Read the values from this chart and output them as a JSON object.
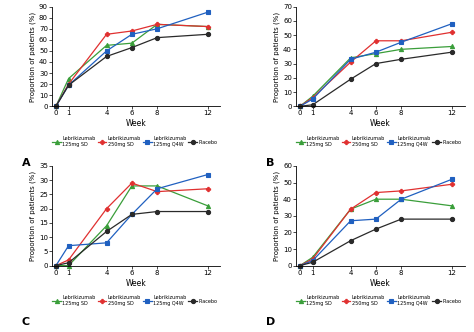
{
  "weeks": [
    0,
    1,
    4,
    6,
    8,
    12
  ],
  "panel_A": {
    "title": "A",
    "ylabel": "Proportion of patients (%)",
    "xlabel": "Week",
    "ylim": [
      0,
      90
    ],
    "yticks": [
      0,
      10,
      20,
      30,
      40,
      50,
      60,
      70,
      80,
      90
    ],
    "series": {
      "leb125sd": [
        0,
        25,
        55,
        57,
        74,
        72
      ],
      "leb250sd": [
        0,
        20,
        65,
        68,
        74,
        72
      ],
      "leb125q4w": [
        0,
        19,
        50,
        65,
        70,
        85
      ],
      "placebo": [
        0,
        19,
        45,
        53,
        62,
        65
      ]
    }
  },
  "panel_B": {
    "title": "B",
    "ylabel": "Proportion of patients (%)",
    "xlabel": "Week",
    "ylim": [
      0,
      70
    ],
    "yticks": [
      0,
      10,
      20,
      30,
      40,
      50,
      60,
      70
    ],
    "series": {
      "leb125sd": [
        0,
        7,
        34,
        37,
        40,
        42
      ],
      "leb250sd": [
        0,
        6,
        31,
        46,
        46,
        52
      ],
      "leb125q4w": [
        0,
        5,
        33,
        38,
        45,
        58
      ],
      "placebo": [
        0,
        1,
        19,
        30,
        33,
        38
      ]
    }
  },
  "panel_C": {
    "title": "C",
    "ylabel": "Proportion of patients (%)",
    "xlabel": "Week",
    "ylim": [
      0,
      35
    ],
    "yticks": [
      0,
      5,
      10,
      15,
      20,
      25,
      30,
      35
    ],
    "series": {
      "leb125sd": [
        0,
        0,
        14,
        28,
        28,
        21
      ],
      "leb250sd": [
        0,
        2,
        20,
        29,
        26,
        27
      ],
      "leb125q4w": [
        0,
        7,
        8,
        18,
        27,
        32
      ],
      "placebo": [
        0,
        1,
        12,
        18,
        19,
        19
      ]
    }
  },
  "panel_D": {
    "title": "D",
    "ylabel": "Proportion of patients (%)",
    "xlabel": "Week",
    "ylim": [
      0,
      60
    ],
    "yticks": [
      0,
      10,
      20,
      30,
      40,
      50,
      60
    ],
    "series": {
      "leb125sd": [
        0,
        5,
        34,
        40,
        40,
        36
      ],
      "leb250sd": [
        0,
        4,
        34,
        44,
        45,
        49
      ],
      "leb125q4w": [
        0,
        3,
        27,
        28,
        40,
        52
      ],
      "placebo": [
        0,
        2,
        15,
        22,
        28,
        28
      ]
    }
  },
  "colors": {
    "leb125sd": "#3a9e3a",
    "leb250sd": "#e03030",
    "leb125q4w": "#2060c0",
    "placebo": "#2a2a2a"
  },
  "markers": {
    "leb125sd": "^",
    "leb250sd": "P",
    "leb125q4w": "s",
    "placebo": "o"
  },
  "legend_labels": {
    "leb125sd": "Lebrikizumab\n125mg SD",
    "leb250sd": "Lebrikizumab\n250mg SD",
    "leb125q4w": "Lebrikizumab\n125mg Q4W",
    "placebo": "Placebo"
  },
  "xticks": [
    0,
    1,
    4,
    6,
    8,
    12
  ]
}
